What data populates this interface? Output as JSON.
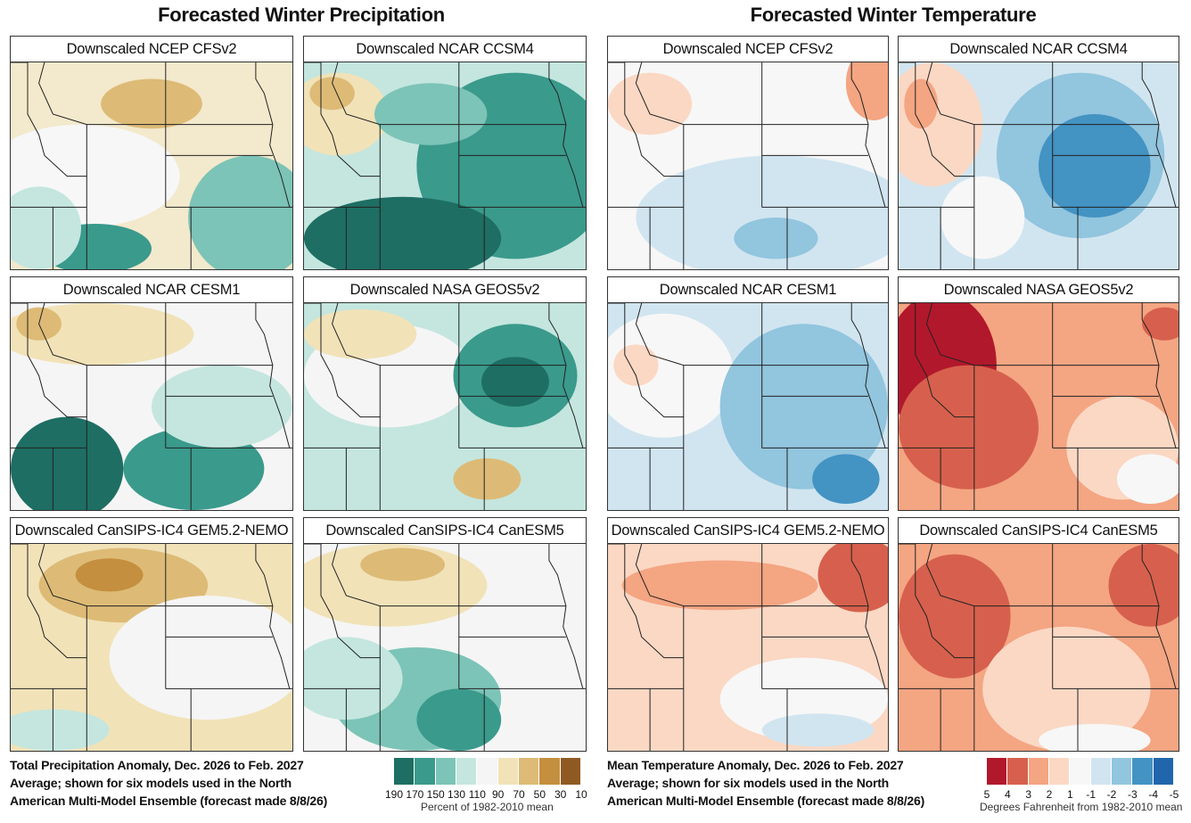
{
  "precip": {
    "title": "Forecasted Winter Precipitation",
    "panels": [
      "Downscaled NCEP CFSv2",
      "Downscaled NCAR CCSM4",
      "Downscaled NCAR CESM1",
      "Downscaled NASA GEOS5v2",
      "Downscaled CanSIPS-IC4 GEM5.2-NEMO",
      "Downscaled CanSIPS-IC4 CanESM5"
    ],
    "caption_lines": [
      "Total Precipitation Anomaly, Dec. 2026 to Feb. 2027",
      "Average; shown for six models used in the North",
      "American Multi-Model Ensemble (forecast made 8/8/26)"
    ],
    "legend": {
      "ticks": [
        "190",
        "170",
        "150",
        "130",
        "110",
        "90",
        "70",
        "50",
        "30",
        "10"
      ],
      "unit": "Percent of 1982-2010 mean",
      "colors": [
        "#1e6e63",
        "#3a9a8c",
        "#7cc4b7",
        "#c4e6df",
        "#f5f5f5",
        "#f1e2b8",
        "#ddbb76",
        "#c48f3e",
        "#8f5a22"
      ]
    }
  },
  "temp": {
    "title": "Forecasted Winter Temperature",
    "panels": [
      "Downscaled NCEP CFSv2",
      "Downscaled NCAR CCSM4",
      "Downscaled NCAR CESM1",
      "Downscaled NASA GEOS5v2",
      "Downscaled CanSIPS-IC4 GEM5.2-NEMO",
      "Downscaled CanSIPS-IC4 CanESM5"
    ],
    "caption_lines": [
      "Mean Temperature Anomaly, Dec. 2026 to Feb. 2027",
      "Average; shown for six models used in the North",
      "American Multi-Model Ensemble (forecast made 8/8/26)"
    ],
    "legend": {
      "ticks": [
        "5",
        "4",
        "3",
        "2",
        "1",
        "-1",
        "-2",
        "-3",
        "-4",
        "-5"
      ],
      "unit": "Degrees Fahrenheit from 1982-2010 mean",
      "colors": [
        "#b2182b",
        "#d6604d",
        "#f4a582",
        "#fbd8c4",
        "#f7f7f7",
        "#d1e5f0",
        "#92c5de",
        "#4393c3",
        "#2166ac"
      ]
    }
  },
  "panel_fields": {
    "p0": {
      "bg": "#f3e9cc",
      "blobs": [
        [
          "#f7f7f7",
          0.25,
          0.55,
          0.35,
          0.25
        ],
        [
          "#ddbb76",
          0.5,
          0.2,
          0.18,
          0.12
        ],
        [
          "#7cc4b7",
          0.85,
          0.75,
          0.22,
          0.3
        ],
        [
          "#3a9a8c",
          0.3,
          0.9,
          0.2,
          0.12
        ],
        [
          "#c4e6df",
          0.1,
          0.8,
          0.15,
          0.2
        ]
      ]
    },
    "p1": {
      "bg": "#c4e6df",
      "blobs": [
        [
          "#3a9a8c",
          0.75,
          0.5,
          0.35,
          0.45
        ],
        [
          "#1e6e63",
          0.35,
          0.85,
          0.35,
          0.2
        ],
        [
          "#f1e2b8",
          0.12,
          0.25,
          0.18,
          0.2
        ],
        [
          "#ddbb76",
          0.1,
          0.15,
          0.08,
          0.08
        ],
        [
          "#7cc4b7",
          0.45,
          0.25,
          0.2,
          0.15
        ]
      ]
    },
    "p2": {
      "bg": "#f5f5f5",
      "blobs": [
        [
          "#f1e2b8",
          0.3,
          0.15,
          0.35,
          0.15
        ],
        [
          "#1e6e63",
          0.2,
          0.8,
          0.2,
          0.25
        ],
        [
          "#3a9a8c",
          0.65,
          0.8,
          0.25,
          0.2
        ],
        [
          "#ddbb76",
          0.1,
          0.1,
          0.08,
          0.08
        ],
        [
          "#c4e6df",
          0.75,
          0.5,
          0.25,
          0.2
        ]
      ]
    },
    "p3": {
      "bg": "#c4e6df",
      "blobs": [
        [
          "#f5f5f5",
          0.3,
          0.35,
          0.3,
          0.25
        ],
        [
          "#3a9a8c",
          0.75,
          0.35,
          0.22,
          0.25
        ],
        [
          "#1e6e63",
          0.75,
          0.38,
          0.12,
          0.12
        ],
        [
          "#f1e2b8",
          0.2,
          0.15,
          0.2,
          0.12
        ],
        [
          "#ddbb76",
          0.65,
          0.85,
          0.12,
          0.1
        ]
      ]
    },
    "p4": {
      "bg": "#f1e2b8",
      "blobs": [
        [
          "#ddbb76",
          0.4,
          0.2,
          0.3,
          0.18
        ],
        [
          "#c48f3e",
          0.35,
          0.15,
          0.12,
          0.08
        ],
        [
          "#f5f5f5",
          0.7,
          0.55,
          0.35,
          0.3
        ],
        [
          "#c4e6df",
          0.15,
          0.9,
          0.2,
          0.1
        ]
      ]
    },
    "p5": {
      "bg": "#f5f5f5",
      "blobs": [
        [
          "#f1e2b8",
          0.3,
          0.2,
          0.35,
          0.2
        ],
        [
          "#ddbb76",
          0.35,
          0.1,
          0.15,
          0.08
        ],
        [
          "#7cc4b7",
          0.4,
          0.75,
          0.3,
          0.25
        ],
        [
          "#3a9a8c",
          0.55,
          0.85,
          0.15,
          0.15
        ],
        [
          "#c4e6df",
          0.15,
          0.65,
          0.2,
          0.2
        ]
      ]
    },
    "t0": {
      "bg": "#f7f7f7",
      "blobs": [
        [
          "#f4a582",
          0.95,
          0.1,
          0.1,
          0.18
        ],
        [
          "#fbd8c4",
          0.15,
          0.2,
          0.15,
          0.15
        ],
        [
          "#d1e5f0",
          0.6,
          0.75,
          0.5,
          0.3
        ],
        [
          "#92c5de",
          0.6,
          0.85,
          0.15,
          0.1
        ]
      ]
    },
    "t1": {
      "bg": "#d1e5f0",
      "blobs": [
        [
          "#fbd8c4",
          0.12,
          0.3,
          0.18,
          0.3
        ],
        [
          "#f4a582",
          0.08,
          0.2,
          0.06,
          0.12
        ],
        [
          "#92c5de",
          0.65,
          0.45,
          0.3,
          0.4
        ],
        [
          "#4393c3",
          0.7,
          0.5,
          0.2,
          0.25
        ],
        [
          "#f7f7f7",
          0.3,
          0.75,
          0.15,
          0.2
        ]
      ]
    },
    "t2": {
      "bg": "#d1e5f0",
      "blobs": [
        [
          "#f7f7f7",
          0.2,
          0.35,
          0.25,
          0.3
        ],
        [
          "#92c5de",
          0.7,
          0.5,
          0.3,
          0.4
        ],
        [
          "#4393c3",
          0.85,
          0.85,
          0.12,
          0.12
        ],
        [
          "#fbd8c4",
          0.1,
          0.3,
          0.08,
          0.1
        ]
      ]
    },
    "t3": {
      "bg": "#f4a582",
      "blobs": [
        [
          "#b2182b",
          0.15,
          0.3,
          0.2,
          0.35
        ],
        [
          "#d6604d",
          0.25,
          0.6,
          0.25,
          0.3
        ],
        [
          "#fbd8c4",
          0.8,
          0.7,
          0.2,
          0.25
        ],
        [
          "#f7f7f7",
          0.9,
          0.85,
          0.12,
          0.12
        ],
        [
          "#d6604d",
          0.95,
          0.1,
          0.08,
          0.08
        ]
      ]
    },
    "t4": {
      "bg": "#fbd8c4",
      "blobs": [
        [
          "#d6604d",
          0.9,
          0.15,
          0.15,
          0.18
        ],
        [
          "#f4a582",
          0.4,
          0.2,
          0.35,
          0.12
        ],
        [
          "#f7f7f7",
          0.7,
          0.75,
          0.3,
          0.2
        ],
        [
          "#d1e5f0",
          0.75,
          0.9,
          0.2,
          0.08
        ]
      ]
    },
    "t5": {
      "bg": "#f4a582",
      "blobs": [
        [
          "#d6604d",
          0.2,
          0.35,
          0.2,
          0.3
        ],
        [
          "#d6604d",
          0.9,
          0.2,
          0.15,
          0.2
        ],
        [
          "#fbd8c4",
          0.6,
          0.7,
          0.3,
          0.3
        ],
        [
          "#f7f7f7",
          0.7,
          0.95,
          0.2,
          0.08
        ]
      ]
    }
  }
}
